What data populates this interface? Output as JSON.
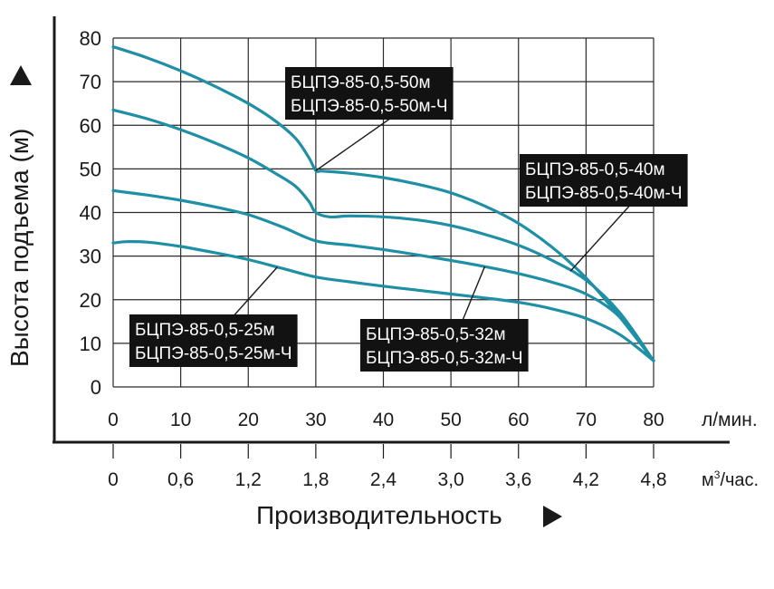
{
  "chart_data": {
    "type": "line",
    "xlabel": "Производительность",
    "ylabel": "Высота подъема (м)",
    "xlim": [
      0,
      80
    ],
    "ylim": [
      0,
      80
    ],
    "x_ticks": [
      "0",
      "10",
      "20",
      "30",
      "40",
      "50",
      "60",
      "70",
      "80"
    ],
    "x_unit": "л/мин.",
    "x2_ticks": [
      "0",
      "0,6",
      "1,2",
      "1,8",
      "2,4",
      "3,0",
      "3,6",
      "4,2",
      "4,8"
    ],
    "x2_unit_base": "м",
    "x2_unit_sup": "3",
    "x2_unit_tail": "/час.",
    "y_ticks": [
      "0",
      "10",
      "20",
      "30",
      "40",
      "50",
      "60",
      "70",
      "80"
    ],
    "grid": true,
    "line_color": "#1e8fa5",
    "series": [
      {
        "name": "БЦПЭ-85-0,5-50м",
        "name2": "БЦПЭ-85-0,5-50м-Ч",
        "x": [
          0,
          5,
          10,
          15,
          20,
          24,
          27,
          29,
          30,
          31,
          35,
          40,
          45,
          50,
          55,
          60,
          65,
          70,
          75,
          80
        ],
        "y": [
          78,
          75.5,
          72.5,
          69,
          65,
          61,
          57,
          52.5,
          49.6,
          49.5,
          49,
          48,
          46.5,
          44.5,
          41.5,
          37.5,
          32,
          25,
          16,
          6
        ]
      },
      {
        "name": "БЦПЭ-85-0,5-40м",
        "name2": "БЦПЭ-85-0,5-40м-Ч",
        "x": [
          0,
          5,
          10,
          15,
          20,
          24,
          27,
          29,
          30,
          32,
          35,
          40,
          45,
          50,
          55,
          60,
          65,
          70,
          75,
          80
        ],
        "y": [
          63.5,
          61.5,
          59,
          56,
          52.5,
          49,
          46,
          42.5,
          40,
          39,
          39.2,
          39,
          38.3,
          37,
          35,
          32.5,
          29,
          24.5,
          17,
          6
        ]
      },
      {
        "name": "БЦПЭ-85-0,5-32м",
        "name2": "БЦПЭ-85-0,5-32м-Ч",
        "x": [
          0,
          5,
          10,
          15,
          20,
          25,
          30,
          35,
          40,
          45,
          50,
          55,
          60,
          65,
          70,
          75,
          80
        ],
        "y": [
          45,
          44,
          42.8,
          41.3,
          39.5,
          36.7,
          33.5,
          32.5,
          31.5,
          30.3,
          29,
          27.6,
          26,
          24,
          21.3,
          16,
          6
        ]
      },
      {
        "name": "БЦПЭ-85-0,5-25м",
        "name2": "БЦПЭ-85-0,5-25м-Ч",
        "x": [
          0,
          2,
          5,
          10,
          15,
          20,
          25,
          30,
          35,
          40,
          45,
          50,
          55,
          60,
          65,
          70,
          75,
          80
        ],
        "y": [
          33,
          33.3,
          33.2,
          32.2,
          30.8,
          29.2,
          27.2,
          25.2,
          24.1,
          23.1,
          22.2,
          21.3,
          20.4,
          19.4,
          17.9,
          15.7,
          12,
          6
        ]
      }
    ]
  }
}
